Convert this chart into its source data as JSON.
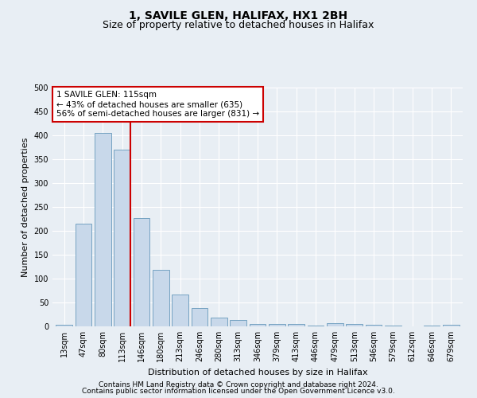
{
  "title1": "1, SAVILE GLEN, HALIFAX, HX1 2BH",
  "title2": "Size of property relative to detached houses in Halifax",
  "xlabel": "Distribution of detached houses by size in Halifax",
  "ylabel": "Number of detached properties",
  "categories": [
    "13sqm",
    "47sqm",
    "80sqm",
    "113sqm",
    "146sqm",
    "180sqm",
    "213sqm",
    "246sqm",
    "280sqm",
    "313sqm",
    "346sqm",
    "379sqm",
    "413sqm",
    "446sqm",
    "479sqm",
    "513sqm",
    "546sqm",
    "579sqm",
    "612sqm",
    "646sqm",
    "679sqm"
  ],
  "values": [
    3,
    215,
    405,
    370,
    226,
    118,
    66,
    38,
    19,
    14,
    5,
    5,
    5,
    2,
    6,
    5,
    3,
    1,
    0,
    1,
    3
  ],
  "bar_color": "#c8d8ea",
  "bar_edge_color": "#6699bb",
  "vline_color": "#cc0000",
  "annotation_box_edge": "#cc0000",
  "property_size_label": "1 SAVILE GLEN: 115sqm",
  "annotation_line1": "← 43% of detached houses are smaller (635)",
  "annotation_line2": "56% of semi-detached houses are larger (831) →",
  "footnote1": "Contains HM Land Registry data © Crown copyright and database right 2024.",
  "footnote2": "Contains public sector information licensed under the Open Government Licence v3.0.",
  "ylim": [
    0,
    500
  ],
  "yticks": [
    0,
    50,
    100,
    150,
    200,
    250,
    300,
    350,
    400,
    450,
    500
  ],
  "bg_color": "#e8eef4",
  "plot_bg_color": "#e8eef4",
  "grid_color": "#ffffff",
  "title1_fontsize": 10,
  "title2_fontsize": 9,
  "axis_label_fontsize": 8,
  "tick_fontsize": 7,
  "annotation_fontsize": 7.5,
  "footnote_fontsize": 6.5
}
